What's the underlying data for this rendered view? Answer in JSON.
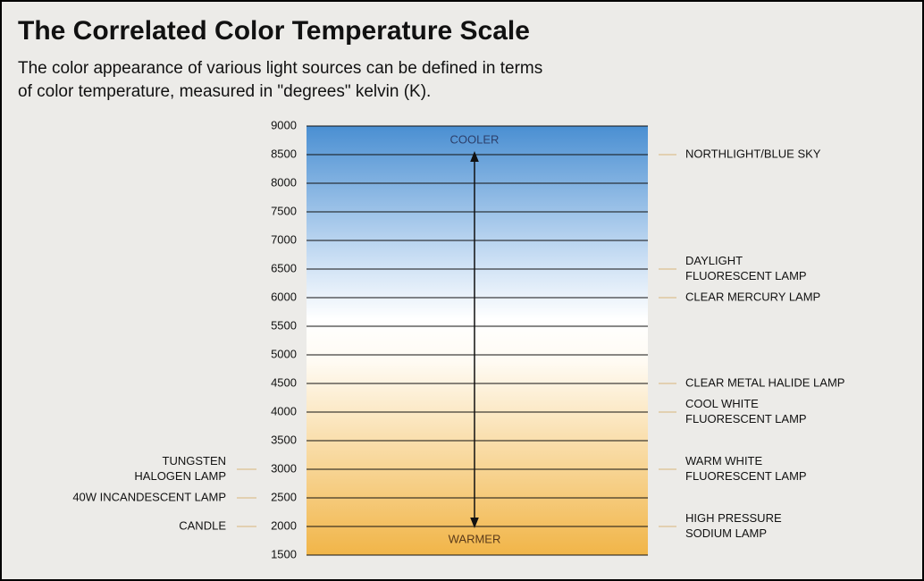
{
  "header": {
    "title": "The Correlated Color Temperature Scale",
    "subtitle": [
      "The color appearance of various light sources can be defined in terms",
      "of color temperature, measured in \"degrees\" kelvin (K)."
    ]
  },
  "scale": {
    "range": [
      1500,
      9000
    ],
    "ticks": [
      9000,
      8500,
      8000,
      7500,
      7000,
      6500,
      6000,
      5500,
      5000,
      4500,
      4000,
      3500,
      3000,
      2500,
      2000,
      1500
    ],
    "top_label": "COOLER",
    "bottom_label": "WARMER"
  },
  "sources": {
    "right": [
      {
        "lines": [
          "NORTHLIGHT/BLUE SKY"
        ],
        "kelvin": 8500
      },
      {
        "lines": [
          "DAYLIGHT",
          "FLUORESCENT LAMP"
        ],
        "kelvin": 6500
      },
      {
        "lines": [
          "CLEAR MERCURY LAMP"
        ],
        "kelvin": 6000
      },
      {
        "lines": [
          "CLEAR METAL HALIDE LAMP"
        ],
        "kelvin": 4500
      },
      {
        "lines": [
          "COOL WHITE",
          "FLUORESCENT LAMP"
        ],
        "kelvin": 4000
      },
      {
        "lines": [
          "WARM WHITE",
          "FLUORESCENT LAMP"
        ],
        "kelvin": 3000
      },
      {
        "lines": [
          "HIGH PRESSURE",
          "SODIUM LAMP"
        ],
        "kelvin": 2000
      }
    ],
    "left": [
      {
        "lines": [
          "TUNGSTEN",
          "HALOGEN LAMP"
        ],
        "kelvin": 3000
      },
      {
        "lines": [
          "40W INCANDESCENT LAMP"
        ],
        "kelvin": 2500
      },
      {
        "lines": [
          "CANDLE"
        ],
        "kelvin": 2000
      }
    ]
  }
}
